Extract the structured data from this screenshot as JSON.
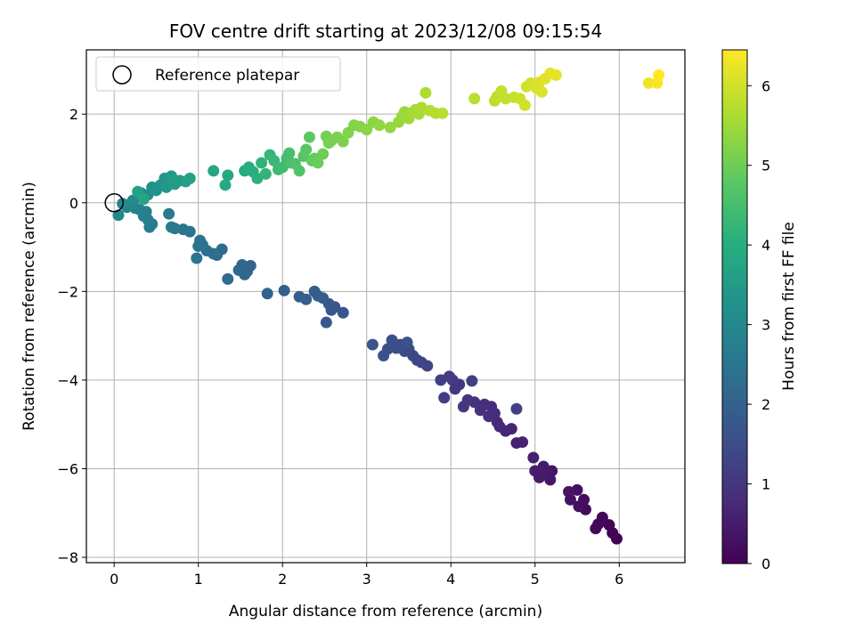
{
  "chart_data": {
    "type": "scatter",
    "title": "FOV centre drift starting at 2023/12/08 09:15:54",
    "xlabel": "Angular distance from reference (arcmin)",
    "ylabel": "Rotation from reference (arcmin)",
    "xlim": [
      -0.33,
      6.78
    ],
    "ylim": [
      -8.12,
      3.45
    ],
    "xticks": [
      0,
      1,
      2,
      3,
      4,
      5,
      6
    ],
    "yticks": [
      -8,
      -6,
      -4,
      -2,
      0,
      2
    ],
    "grid": true,
    "legend": {
      "position": "top-left",
      "entries": [
        "Reference platepar"
      ]
    },
    "reference_point": {
      "x": 0,
      "y": 0,
      "label": "Reference platepar"
    },
    "colorbar": {
      "label": "Hours from first FF file",
      "range": [
        0,
        6.45
      ],
      "ticks": [
        0,
        1,
        2,
        3,
        4,
        5,
        6
      ],
      "colormap": "viridis"
    },
    "points": [
      [
        5.97,
        -7.58,
        0.0
      ],
      [
        5.92,
        -7.45,
        0.03
      ],
      [
        5.88,
        -7.27,
        0.06
      ],
      [
        5.8,
        -7.1,
        0.09
      ],
      [
        5.75,
        -7.25,
        0.12
      ],
      [
        5.72,
        -7.35,
        0.15
      ],
      [
        5.6,
        -6.92,
        0.19
      ],
      [
        5.58,
        -6.7,
        0.22
      ],
      [
        5.52,
        -6.85,
        0.25
      ],
      [
        5.5,
        -6.48,
        0.28
      ],
      [
        5.42,
        -6.7,
        0.31
      ],
      [
        5.4,
        -6.52,
        0.34
      ],
      [
        5.2,
        -6.05,
        0.38
      ],
      [
        5.18,
        -6.25,
        0.41
      ],
      [
        5.12,
        -6.1,
        0.44
      ],
      [
        5.1,
        -5.95,
        0.47
      ],
      [
        5.05,
        -6.2,
        0.5
      ],
      [
        5.0,
        -6.05,
        0.53
      ],
      [
        4.98,
        -5.75,
        0.56
      ],
      [
        4.85,
        -5.4,
        0.6
      ],
      [
        4.78,
        -5.42,
        0.63
      ],
      [
        4.72,
        -5.1,
        0.66
      ],
      [
        4.65,
        -5.15,
        0.69
      ],
      [
        4.58,
        -5.05,
        0.72
      ],
      [
        4.55,
        -4.95,
        0.75
      ],
      [
        4.52,
        -4.75,
        0.78
      ],
      [
        4.48,
        -4.6,
        0.81
      ],
      [
        4.45,
        -4.82,
        0.84
      ],
      [
        4.4,
        -4.55,
        0.88
      ],
      [
        4.35,
        -4.68,
        0.91
      ],
      [
        4.28,
        -4.5,
        0.94
      ],
      [
        4.2,
        -4.45,
        0.97
      ],
      [
        4.15,
        -4.6,
        1.0
      ],
      [
        4.1,
        -4.1,
        1.03
      ],
      [
        4.05,
        -4.2,
        1.06
      ],
      [
        4.02,
        -4.0,
        1.09
      ],
      [
        3.98,
        -3.92,
        1.13
      ],
      [
        3.92,
        -4.4,
        1.16
      ],
      [
        3.88,
        -4.0,
        1.19
      ],
      [
        4.78,
        -4.65,
        1.22
      ],
      [
        4.25,
        -4.02,
        1.25
      ],
      [
        3.72,
        -3.68,
        1.28
      ],
      [
        3.65,
        -3.6,
        1.31
      ],
      [
        3.6,
        -3.55,
        1.34
      ],
      [
        3.55,
        -3.45,
        1.38
      ],
      [
        3.5,
        -3.3,
        1.41
      ],
      [
        3.45,
        -3.35,
        1.44
      ],
      [
        3.4,
        -3.2,
        1.47
      ],
      [
        3.35,
        -3.28,
        1.5
      ],
      [
        3.3,
        -3.1,
        1.53
      ],
      [
        3.25,
        -3.3,
        1.56
      ],
      [
        3.2,
        -3.45,
        1.59
      ],
      [
        3.07,
        -3.2,
        1.63
      ],
      [
        3.48,
        -3.15,
        1.66
      ],
      [
        2.72,
        -2.48,
        1.69
      ],
      [
        2.62,
        -2.35,
        1.72
      ],
      [
        2.58,
        -2.42,
        1.75
      ],
      [
        2.55,
        -2.28,
        1.78
      ],
      [
        2.52,
        -2.7,
        1.81
      ],
      [
        2.48,
        -2.15,
        1.84
      ],
      [
        2.42,
        -2.1,
        1.88
      ],
      [
        2.38,
        -2.0,
        1.91
      ],
      [
        2.28,
        -2.18,
        1.94
      ],
      [
        2.2,
        -2.12,
        1.97
      ],
      [
        2.02,
        -1.98,
        2.0
      ],
      [
        1.82,
        -2.05,
        2.03
      ],
      [
        1.62,
        -1.42,
        2.06
      ],
      [
        1.58,
        -1.55,
        2.09
      ],
      [
        1.55,
        -1.62,
        2.13
      ],
      [
        1.52,
        -1.4,
        2.16
      ],
      [
        1.48,
        -1.52,
        2.19
      ],
      [
        1.35,
        -1.72,
        2.22
      ],
      [
        1.28,
        -1.05,
        2.25
      ],
      [
        1.22,
        -1.18,
        2.28
      ],
      [
        1.18,
        -1.15,
        2.31
      ],
      [
        1.1,
        -1.08,
        2.34
      ],
      [
        1.05,
        -0.95,
        2.38
      ],
      [
        1.02,
        -0.85,
        2.41
      ],
      [
        1.0,
        -0.98,
        2.44
      ],
      [
        0.98,
        -1.25,
        2.47
      ],
      [
        0.9,
        -0.65,
        2.5
      ],
      [
        0.82,
        -0.6,
        2.53
      ],
      [
        0.72,
        -0.58,
        2.56
      ],
      [
        0.68,
        -0.55,
        2.59
      ],
      [
        0.65,
        -0.25,
        2.63
      ],
      [
        0.45,
        -0.48,
        2.66
      ],
      [
        0.42,
        -0.55,
        2.69
      ],
      [
        0.4,
        -0.38,
        2.72
      ],
      [
        0.38,
        -0.2,
        2.75
      ],
      [
        0.35,
        -0.3,
        2.78
      ],
      [
        0.3,
        -0.15,
        2.81
      ],
      [
        0.25,
        -0.12,
        2.84
      ],
      [
        0.2,
        -0.05,
        2.88
      ],
      [
        0.15,
        -0.1,
        2.91
      ],
      [
        0.1,
        -0.02,
        2.94
      ],
      [
        0.05,
        -0.28,
        2.97
      ],
      [
        0.22,
        0.05,
        3.0
      ],
      [
        0.28,
        0.12,
        3.05
      ],
      [
        0.32,
        0.22,
        3.1
      ],
      [
        0.4,
        0.18,
        3.15
      ],
      [
        0.45,
        0.35,
        3.2
      ],
      [
        0.5,
        0.28,
        3.25
      ],
      [
        0.55,
        0.4,
        3.3
      ],
      [
        0.6,
        0.55,
        3.35
      ],
      [
        0.62,
        0.35,
        3.4
      ],
      [
        0.68,
        0.6,
        3.45
      ],
      [
        0.72,
        0.42,
        3.5
      ],
      [
        0.78,
        0.5,
        3.55
      ],
      [
        0.85,
        0.48,
        3.6
      ],
      [
        0.9,
        0.55,
        3.65
      ],
      [
        0.28,
        0.25,
        3.7
      ],
      [
        0.35,
        0.08,
        3.75
      ],
      [
        1.18,
        0.72,
        3.8
      ],
      [
        1.35,
        0.62,
        3.85
      ],
      [
        1.32,
        0.4,
        3.9
      ],
      [
        1.55,
        0.72,
        3.95
      ],
      [
        1.6,
        0.8,
        4.0
      ],
      [
        1.65,
        0.7,
        4.05
      ],
      [
        1.7,
        0.55,
        4.1
      ],
      [
        1.75,
        0.9,
        4.15
      ],
      [
        1.8,
        0.65,
        4.2
      ],
      [
        1.85,
        1.08,
        4.25
      ],
      [
        1.9,
        0.95,
        4.3
      ],
      [
        1.95,
        0.75,
        4.35
      ],
      [
        2.0,
        0.8,
        4.4
      ],
      [
        2.05,
        1.0,
        4.45
      ],
      [
        2.08,
        1.12,
        4.5
      ],
      [
        2.1,
        0.9,
        4.55
      ],
      [
        2.15,
        0.88,
        4.6
      ],
      [
        2.2,
        0.72,
        4.65
      ],
      [
        2.25,
        1.05,
        4.7
      ],
      [
        2.28,
        1.2,
        4.75
      ],
      [
        2.32,
        1.48,
        4.8
      ],
      [
        2.35,
        0.95,
        4.85
      ],
      [
        2.38,
        1.0,
        4.9
      ],
      [
        2.42,
        0.9,
        4.95
      ],
      [
        2.48,
        1.1,
        5.0
      ],
      [
        2.52,
        1.5,
        5.05
      ],
      [
        2.55,
        1.35,
        5.08
      ],
      [
        2.58,
        1.4,
        5.11
      ],
      [
        2.65,
        1.48,
        5.14
      ],
      [
        2.72,
        1.38,
        5.17
      ],
      [
        2.78,
        1.58,
        5.2
      ],
      [
        2.85,
        1.75,
        5.23
      ],
      [
        2.92,
        1.72,
        5.26
      ],
      [
        3.0,
        1.65,
        5.29
      ],
      [
        3.08,
        1.82,
        5.32
      ],
      [
        3.15,
        1.75,
        5.35
      ],
      [
        3.28,
        1.7,
        5.38
      ],
      [
        3.38,
        1.82,
        5.41
      ],
      [
        3.42,
        1.95,
        5.44
      ],
      [
        3.45,
        2.05,
        5.47
      ],
      [
        3.5,
        1.9,
        5.5
      ],
      [
        3.55,
        2.05,
        5.53
      ],
      [
        3.58,
        2.1,
        5.56
      ],
      [
        3.62,
        2.0,
        5.59
      ],
      [
        3.65,
        2.15,
        5.62
      ],
      [
        3.7,
        2.48,
        5.65
      ],
      [
        3.75,
        2.08,
        5.68
      ],
      [
        3.82,
        2.02,
        5.71
      ],
      [
        3.9,
        2.02,
        5.74
      ],
      [
        4.28,
        2.35,
        5.77
      ],
      [
        4.52,
        2.3,
        5.8
      ],
      [
        4.55,
        2.4,
        5.83
      ],
      [
        4.6,
        2.52,
        5.86
      ],
      [
        4.65,
        2.35,
        5.89
      ],
      [
        4.75,
        2.38,
        5.92
      ],
      [
        4.82,
        2.35,
        5.95
      ],
      [
        4.88,
        2.2,
        5.98
      ],
      [
        4.9,
        2.62,
        6.01
      ],
      [
        4.95,
        2.7,
        6.04
      ],
      [
        5.02,
        2.58,
        6.07
      ],
      [
        5.05,
        2.72,
        6.1
      ],
      [
        5.08,
        2.5,
        6.13
      ],
      [
        5.12,
        2.8,
        6.16
      ],
      [
        5.18,
        2.92,
        6.19
      ],
      [
        5.25,
        2.88,
        6.22
      ],
      [
        6.35,
        2.7,
        6.3
      ],
      [
        6.45,
        2.7,
        6.38
      ],
      [
        6.47,
        2.88,
        6.45
      ]
    ]
  }
}
